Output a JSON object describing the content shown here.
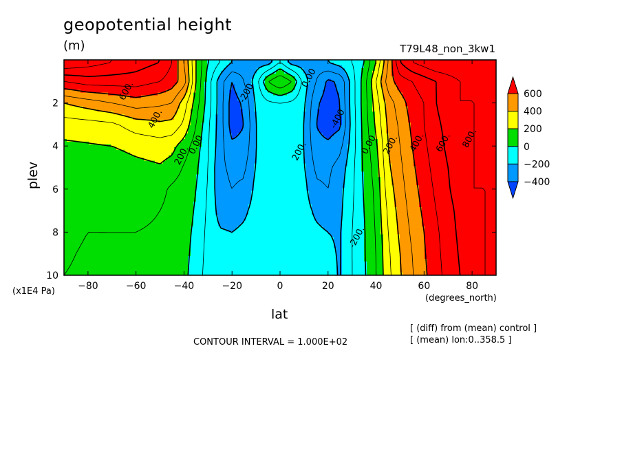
{
  "figure": {
    "title": "geopotential height",
    "units": "(m)",
    "experiment": "T79L48_non_3kw1",
    "yunit_label": "(x1E4 Pa)",
    "xunit_label": "(degrees_north)",
    "contour_interval": "CONTOUR INTERVAL = 1.000E+02",
    "note_diff": "[ (diff) from (mean) control ]",
    "note_mean": "[ (mean) lon:0..358.5 ]"
  },
  "chart_data": {
    "type": "heatmap",
    "xlabel": "lat",
    "ylabel": "plev",
    "xlim": [
      -90,
      90
    ],
    "ylim": [
      10,
      0
    ],
    "xticks": [
      -80,
      -60,
      -40,
      -20,
      0,
      20,
      40,
      60,
      80
    ],
    "yticks": [
      2,
      4,
      6,
      8,
      10
    ],
    "x": [
      -90,
      -80,
      -70,
      -60,
      -50,
      -45,
      -40,
      -35,
      -30,
      -25,
      -20,
      -15,
      -10,
      -5,
      0,
      5,
      10,
      15,
      20,
      25,
      30,
      35,
      40,
      45,
      50,
      55,
      60,
      65,
      70,
      75,
      80,
      85,
      90
    ],
    "y": [
      0.1,
      1,
      2,
      3,
      4,
      5,
      6,
      7,
      8,
      9,
      10
    ],
    "z": [
      [
        1000,
        950,
        900,
        850,
        800,
        700,
        500,
        200,
        0,
        -100,
        -200,
        -250,
        -250,
        -250,
        -100,
        -250,
        -250,
        -250,
        -200,
        -150,
        -100,
        0,
        200,
        500,
        800,
        900,
        950,
        1000,
        1000,
        1000,
        1000,
        1000,
        1000
      ],
      [
        700,
        750,
        750,
        750,
        700,
        650,
        550,
        200,
        -50,
        -250,
        -400,
        -300,
        -150,
        100,
        200,
        100,
        -150,
        -300,
        -420,
        -380,
        -150,
        50,
        300,
        550,
        650,
        700,
        750,
        800,
        850,
        900,
        900,
        900,
        900
      ],
      [
        400,
        450,
        500,
        550,
        520,
        500,
        350,
        150,
        -50,
        -250,
        -450,
        -380,
        -180,
        -120,
        -100,
        -120,
        -180,
        -380,
        -450,
        -400,
        -150,
        50,
        250,
        450,
        550,
        650,
        700,
        800,
        850,
        900,
        900,
        900,
        900
      ],
      [
        250,
        260,
        280,
        350,
        380,
        370,
        280,
        100,
        -80,
        -250,
        -450,
        -400,
        -200,
        -150,
        -120,
        -150,
        -200,
        -400,
        -450,
        -420,
        -160,
        40,
        220,
        420,
        520,
        620,
        700,
        780,
        830,
        880,
        900,
        900,
        900
      ],
      [
        180,
        190,
        200,
        230,
        250,
        230,
        150,
        50,
        -90,
        -260,
        -380,
        -370,
        -200,
        -160,
        -130,
        -160,
        -200,
        -370,
        -380,
        -330,
        -150,
        30,
        180,
        400,
        500,
        600,
        680,
        760,
        820,
        870,
        900,
        900,
        900
      ],
      [
        160,
        150,
        140,
        170,
        190,
        160,
        90,
        20,
        -100,
        -280,
        -320,
        -320,
        -190,
        -160,
        -130,
        -160,
        -190,
        -320,
        -320,
        -260,
        -130,
        20,
        150,
        380,
        480,
        580,
        660,
        740,
        800,
        860,
        900,
        900,
        900
      ],
      [
        150,
        120,
        130,
        150,
        130,
        80,
        50,
        0,
        -110,
        -270,
        -300,
        -280,
        -170,
        -150,
        -130,
        -150,
        -170,
        -280,
        -300,
        -230,
        -120,
        10,
        130,
        350,
        460,
        560,
        640,
        720,
        790,
        850,
        900,
        900,
        900
      ],
      [
        130,
        110,
        120,
        120,
        100,
        70,
        40,
        -10,
        -120,
        -240,
        -250,
        -220,
        -160,
        -140,
        -130,
        -140,
        -160,
        -220,
        -250,
        -220,
        -110,
        0,
        120,
        320,
        440,
        540,
        620,
        700,
        770,
        830,
        890,
        900,
        900
      ],
      [
        120,
        100,
        100,
        100,
        90,
        60,
        30,
        -20,
        -130,
        -190,
        -200,
        -180,
        -150,
        -140,
        -130,
        -140,
        -150,
        -180,
        -200,
        -210,
        -100,
        -10,
        110,
        300,
        420,
        520,
        600,
        680,
        760,
        820,
        880,
        900,
        900
      ],
      [
        110,
        90,
        90,
        90,
        80,
        50,
        25,
        -30,
        -140,
        -170,
        -180,
        -160,
        -140,
        -135,
        -130,
        -135,
        -140,
        -160,
        -180,
        -210,
        -100,
        -10,
        100,
        280,
        400,
        500,
        590,
        670,
        750,
        810,
        870,
        900,
        900
      ],
      [
        100,
        85,
        85,
        85,
        75,
        45,
        20,
        -40,
        -150,
        -160,
        -160,
        -150,
        -140,
        -135,
        -130,
        -135,
        -140,
        -150,
        -160,
        -210,
        -100,
        -15,
        95,
        270,
        390,
        490,
        580,
        660,
        740,
        800,
        860,
        900,
        900
      ]
    ],
    "levels": [
      -400,
      -200,
      0,
      200,
      400,
      600
    ],
    "colorbar": {
      "ticks": [
        "600",
        "400",
        "200",
        "0",
        "-200",
        "-400"
      ],
      "colors": [
        "#ff0000",
        "#ff9900",
        "#ffff00",
        "#00dd00",
        "#00ffff",
        "#0099ff",
        "#0044ff"
      ]
    },
    "contour_labels": [
      {
        "text": "600.",
        "lat": -63,
        "p": 1.5
      },
      {
        "text": "400.",
        "lat": -51,
        "p": 2.8
      },
      {
        "text": "200.",
        "lat": -40,
        "p": 4.5
      },
      {
        "text": "0.00",
        "lat": -34,
        "p": 4.0
      },
      {
        "text": "-200",
        "lat": -13,
        "p": 1.6
      },
      {
        "text": "0.00",
        "lat": 13,
        "p": 0.9
      },
      {
        "text": "-400",
        "lat": 25,
        "p": 2.8
      },
      {
        "text": "200.",
        "lat": 9,
        "p": 4.3
      },
      {
        "text": "0.00",
        "lat": 38,
        "p": 4.0
      },
      {
        "text": "-200.",
        "lat": 33,
        "p": 8.3
      },
      {
        "text": "200.",
        "lat": 47,
        "p": 4.0
      },
      {
        "text": "400.",
        "lat": 58,
        "p": 3.9
      },
      {
        "text": "600.",
        "lat": 69,
        "p": 3.9
      },
      {
        "text": "800.",
        "lat": 80,
        "p": 3.7
      }
    ]
  }
}
